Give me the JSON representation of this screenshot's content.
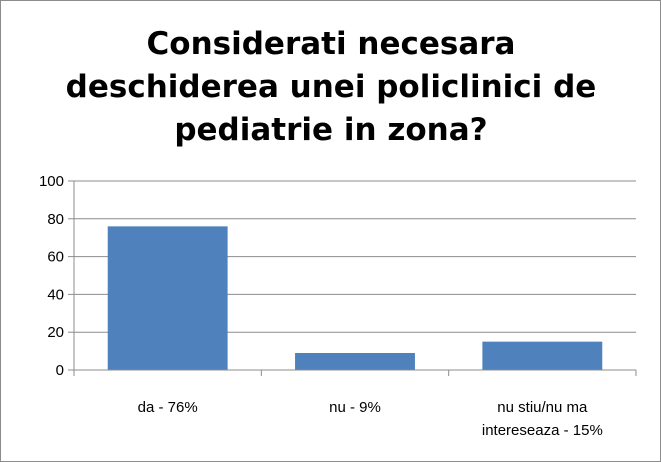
{
  "chart_data": {
    "type": "bar",
    "title": "Considerati necesara deschiderea unei policlinici de pediatrie in zona?",
    "categories": [
      [
        "da - 76%"
      ],
      [
        "nu - 9%"
      ],
      [
        "nu stiu/nu ma",
        "intereseaza - 15%"
      ]
    ],
    "values": [
      76,
      9,
      15
    ],
    "ylim": [
      0,
      100
    ],
    "yticks": [
      "0",
      "20",
      "40",
      "60",
      "80",
      "100"
    ],
    "grid": true,
    "legend": "none",
    "colors": {
      "bar": "#4F81BD",
      "grid": "#8C8C8C",
      "axis": "#8C8C8C"
    }
  }
}
